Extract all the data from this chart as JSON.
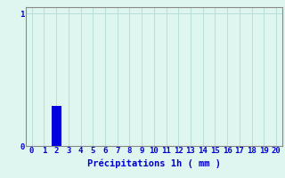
{
  "values": [
    0,
    0,
    0.3,
    0,
    0,
    0,
    0,
    0,
    0,
    0,
    0,
    0,
    0,
    0,
    0,
    0,
    0,
    0,
    0,
    0,
    0
  ],
  "bar_color": "#0000dd",
  "background_color": "#dff5f0",
  "grid_color": "#b8ddd8",
  "axis_color": "#888888",
  "text_color": "#0000cc",
  "xlabel": "Précipitations 1h ( mm )",
  "xlabel_fontsize": 7.5,
  "tick_fontsize": 6.5,
  "ylim": [
    0,
    1.05
  ],
  "yticks": [
    0,
    1
  ],
  "xlim": [
    -0.5,
    20.5
  ],
  "xtick_labels": [
    "0",
    "1",
    "2",
    "3",
    "4",
    "5",
    "6",
    "7",
    "8",
    "9",
    "10",
    "11",
    "12",
    "13",
    "14",
    "15",
    "16",
    "17",
    "18",
    "19",
    "20"
  ]
}
